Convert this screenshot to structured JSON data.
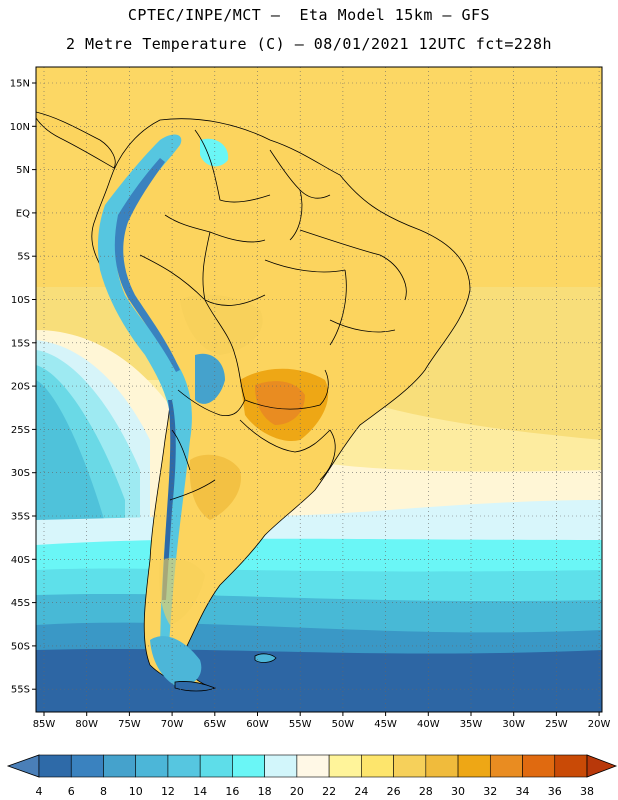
{
  "title_line1": "CPTEC/INPE/MCT –  Eta Model 15km – GFS",
  "title_line2": "2 Metre Temperature (C) – 08/01/2021 12UTC fct=228h",
  "lat_labels": [
    "15N",
    "10N",
    "5N",
    "EQ",
    "5S",
    "10S",
    "15S",
    "20S",
    "25S",
    "30S",
    "35S",
    "40S",
    "45S",
    "50S",
    "55S"
  ],
  "lon_labels": [
    "85W",
    "80W",
    "75W",
    "70W",
    "65W",
    "60W",
    "55W",
    "50W",
    "45W",
    "40W",
    "35W",
    "30W",
    "25W",
    "20W"
  ],
  "colorbar": {
    "labels": [
      "4",
      "6",
      "8",
      "10",
      "12",
      "14",
      "16",
      "18",
      "20",
      "22",
      "24",
      "26",
      "28",
      "30",
      "32",
      "34",
      "36",
      "38"
    ],
    "colors": [
      "#4a7fb8",
      "#2e6aa8",
      "#3a82bf",
      "#45a2cc",
      "#4cb6d8",
      "#56c6e0",
      "#5edde9",
      "#6af6f6",
      "#d2f6fb",
      "#fff8e6",
      "#fff49a",
      "#fde56c",
      "#f6d05a",
      "#f0bb3c",
      "#eea715",
      "#e98c21",
      "#e06a10",
      "#c94a06",
      "#b8380a"
    ]
  }
}
